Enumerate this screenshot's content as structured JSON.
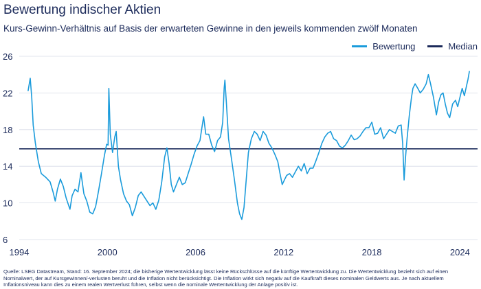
{
  "header": {
    "title": "Bewertung indischer Aktien",
    "subtitle": "Kurs-Gewinn-Verhältnis auf Basis der erwarteten Gewinne in den jeweils kommenden zwölf Monaten"
  },
  "colors": {
    "series": "#1a9bdb",
    "median": "#1b2a5a",
    "grid": "#d6dbe6",
    "text": "#1b2a5a"
  },
  "source": "Quelle: LSEG Datastream, Stand: 16. September 2024; die bisherige Wertentwicklung lässt keine Rückschlüsse auf die künftige Wertentwicklung zu. Die Wertentwicklung bezieht sich auf einen Nominalwert, der auf Kursgewinnen/-verlusten beruht und die Inflation nicht berücksichtigt. Die Inflation wirkt sich negativ auf die Kaufkraft dieses nominalen Geldwerts aus. Je nach aktuellem Inflationsniveau kann dies zu einem realen Wertverlust führen, selbst wenn die nominale Wertentwicklung der Anlage positiv ist.",
  "chart_data": {
    "type": "line",
    "title": "Bewertung indischer Aktien",
    "subtitle": "Kurs-Gewinn-Verhältnis auf Basis der erwarteten Gewinne in den jeweils kommenden zwölf Monaten",
    "xlim": [
      1994,
      2025.2
    ],
    "ylim": [
      6,
      26
    ],
    "x_ticks": [
      "1994",
      "2000",
      "2006",
      "2012",
      "2018",
      "2024"
    ],
    "y_ticks": [
      "6",
      "10",
      "14",
      "18",
      "22",
      "26"
    ],
    "grid": "horizontal",
    "legend_position": "top-right",
    "series": [
      {
        "name": "Bewertung",
        "color": "#1a9bdb",
        "points": [
          [
            1994.6,
            22.2
          ],
          [
            1994.75,
            23.6
          ],
          [
            1994.85,
            21.5
          ],
          [
            1994.95,
            18.5
          ],
          [
            1995.1,
            16.5
          ],
          [
            1995.3,
            14.5
          ],
          [
            1995.5,
            13.2
          ],
          [
            1995.8,
            12.8
          ],
          [
            1996.1,
            12.3
          ],
          [
            1996.3,
            11.2
          ],
          [
            1996.45,
            10.2
          ],
          [
            1996.6,
            11.5
          ],
          [
            1996.8,
            12.6
          ],
          [
            1997.0,
            11.8
          ],
          [
            1997.2,
            10.5
          ],
          [
            1997.45,
            9.3
          ],
          [
            1997.6,
            10.8
          ],
          [
            1997.8,
            11.5
          ],
          [
            1998.0,
            11.2
          ],
          [
            1998.2,
            13.3
          ],
          [
            1998.4,
            11.0
          ],
          [
            1998.6,
            10.2
          ],
          [
            1998.8,
            9.0
          ],
          [
            1999.0,
            8.8
          ],
          [
            1999.2,
            9.6
          ],
          [
            1999.4,
            11.3
          ],
          [
            1999.6,
            13.2
          ],
          [
            1999.8,
            15.2
          ],
          [
            1999.95,
            16.4
          ],
          [
            2000.05,
            16.3
          ],
          [
            2000.1,
            22.5
          ],
          [
            2000.2,
            17.5
          ],
          [
            2000.35,
            15.5
          ],
          [
            2000.5,
            17.2
          ],
          [
            2000.6,
            17.8
          ],
          [
            2000.75,
            14.0
          ],
          [
            2000.9,
            12.5
          ],
          [
            2001.1,
            11.0
          ],
          [
            2001.3,
            10.2
          ],
          [
            2001.5,
            9.8
          ],
          [
            2001.7,
            8.6
          ],
          [
            2001.9,
            9.5
          ],
          [
            2002.1,
            10.8
          ],
          [
            2002.3,
            11.2
          ],
          [
            2002.5,
            10.7
          ],
          [
            2002.7,
            10.2
          ],
          [
            2002.9,
            9.7
          ],
          [
            2003.1,
            10.0
          ],
          [
            2003.3,
            9.3
          ],
          [
            2003.5,
            10.3
          ],
          [
            2003.7,
            12.3
          ],
          [
            2003.9,
            15.0
          ],
          [
            2004.05,
            16.0
          ],
          [
            2004.2,
            14.3
          ],
          [
            2004.35,
            12.0
          ],
          [
            2004.5,
            11.2
          ],
          [
            2004.7,
            12.0
          ],
          [
            2004.9,
            12.8
          ],
          [
            2005.1,
            12.0
          ],
          [
            2005.3,
            12.2
          ],
          [
            2005.5,
            13.2
          ],
          [
            2005.7,
            14.2
          ],
          [
            2005.9,
            15.3
          ],
          [
            2006.1,
            16.2
          ],
          [
            2006.3,
            16.8
          ],
          [
            2006.45,
            18.4
          ],
          [
            2006.55,
            19.4
          ],
          [
            2006.7,
            17.5
          ],
          [
            2006.9,
            17.5
          ],
          [
            2007.1,
            16.3
          ],
          [
            2007.3,
            15.6
          ],
          [
            2007.5,
            16.8
          ],
          [
            2007.7,
            17.2
          ],
          [
            2007.85,
            18.8
          ],
          [
            2007.95,
            22.5
          ],
          [
            2008.0,
            23.4
          ],
          [
            2008.1,
            21.0
          ],
          [
            2008.25,
            17.0
          ],
          [
            2008.45,
            14.8
          ],
          [
            2008.65,
            12.5
          ],
          [
            2008.85,
            10.0
          ],
          [
            2009.0,
            8.8
          ],
          [
            2009.15,
            8.2
          ],
          [
            2009.3,
            9.5
          ],
          [
            2009.45,
            12.5
          ],
          [
            2009.6,
            15.5
          ],
          [
            2009.8,
            17.0
          ],
          [
            2010.0,
            17.8
          ],
          [
            2010.2,
            17.5
          ],
          [
            2010.4,
            16.8
          ],
          [
            2010.6,
            17.8
          ],
          [
            2010.8,
            17.4
          ],
          [
            2011.0,
            16.5
          ],
          [
            2011.2,
            16.0
          ],
          [
            2011.4,
            15.3
          ],
          [
            2011.6,
            14.5
          ],
          [
            2011.75,
            13.2
          ],
          [
            2011.9,
            12.0
          ],
          [
            2012.05,
            12.5
          ],
          [
            2012.2,
            13.0
          ],
          [
            2012.4,
            13.2
          ],
          [
            2012.6,
            12.8
          ],
          [
            2012.8,
            13.4
          ],
          [
            2013.0,
            14.0
          ],
          [
            2013.2,
            13.5
          ],
          [
            2013.4,
            14.3
          ],
          [
            2013.6,
            13.2
          ],
          [
            2013.8,
            13.8
          ],
          [
            2014.0,
            13.8
          ],
          [
            2014.2,
            14.6
          ],
          [
            2014.4,
            15.5
          ],
          [
            2014.6,
            16.5
          ],
          [
            2014.8,
            17.2
          ],
          [
            2015.0,
            17.6
          ],
          [
            2015.2,
            17.8
          ],
          [
            2015.4,
            17.0
          ],
          [
            2015.6,
            16.8
          ],
          [
            2015.8,
            16.2
          ],
          [
            2016.0,
            16.0
          ],
          [
            2016.2,
            16.3
          ],
          [
            2016.4,
            16.8
          ],
          [
            2016.6,
            17.4
          ],
          [
            2016.8,
            16.9
          ],
          [
            2017.0,
            17.0
          ],
          [
            2017.2,
            17.3
          ],
          [
            2017.4,
            17.8
          ],
          [
            2017.6,
            18.2
          ],
          [
            2017.8,
            18.2
          ],
          [
            2018.0,
            18.8
          ],
          [
            2018.2,
            17.5
          ],
          [
            2018.4,
            17.6
          ],
          [
            2018.6,
            18.2
          ],
          [
            2018.8,
            17.0
          ],
          [
            2019.0,
            17.5
          ],
          [
            2019.2,
            18.0
          ],
          [
            2019.4,
            17.8
          ],
          [
            2019.6,
            17.6
          ],
          [
            2019.8,
            18.4
          ],
          [
            2020.0,
            18.5
          ],
          [
            2020.1,
            16.5
          ],
          [
            2020.2,
            12.5
          ],
          [
            2020.3,
            15.0
          ],
          [
            2020.4,
            17.0
          ],
          [
            2020.55,
            19.5
          ],
          [
            2020.7,
            21.5
          ],
          [
            2020.8,
            22.5
          ],
          [
            2020.95,
            23.0
          ],
          [
            2021.1,
            22.6
          ],
          [
            2021.3,
            22.0
          ],
          [
            2021.5,
            22.4
          ],
          [
            2021.7,
            23.0
          ],
          [
            2021.85,
            24.0
          ],
          [
            2022.0,
            23.0
          ],
          [
            2022.2,
            21.5
          ],
          [
            2022.4,
            19.6
          ],
          [
            2022.55,
            21.0
          ],
          [
            2022.7,
            21.8
          ],
          [
            2022.85,
            22.0
          ],
          [
            2023.0,
            20.8
          ],
          [
            2023.15,
            19.8
          ],
          [
            2023.3,
            19.3
          ],
          [
            2023.5,
            20.8
          ],
          [
            2023.7,
            21.2
          ],
          [
            2023.85,
            20.5
          ],
          [
            2024.0,
            21.5
          ],
          [
            2024.15,
            22.5
          ],
          [
            2024.3,
            21.7
          ],
          [
            2024.45,
            22.8
          ],
          [
            2024.55,
            23.5
          ],
          [
            2024.65,
            24.4
          ]
        ]
      },
      {
        "name": "Median",
        "color": "#1b2a5a",
        "value": 15.9
      }
    ]
  }
}
